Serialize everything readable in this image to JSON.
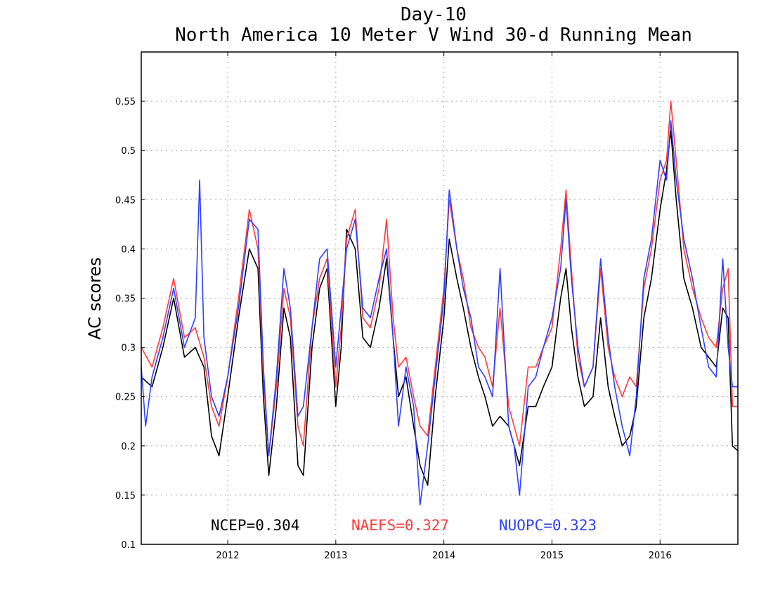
{
  "chart_data": {
    "type": "line",
    "title": "Day-10",
    "subtitle": "North America 10 Meter V Wind 30-d Running Mean",
    "xlabel": "",
    "ylabel": "AC scores",
    "xlim": [
      2011.2,
      2016.72
    ],
    "ylim": [
      0.1,
      0.6
    ],
    "x_ticks": [
      {
        "value": 2012.0,
        "label": "2012"
      },
      {
        "value": 2013.0,
        "label": "2013"
      },
      {
        "value": 2014.0,
        "label": "2014"
      },
      {
        "value": 2015.0,
        "label": "2015"
      },
      {
        "value": 2016.0,
        "label": "2016"
      }
    ],
    "y_ticks": [
      {
        "value": 0.1,
        "label": "0.1"
      },
      {
        "value": 0.15,
        "label": "0.15"
      },
      {
        "value": 0.2,
        "label": "0.2"
      },
      {
        "value": 0.25,
        "label": "0.25"
      },
      {
        "value": 0.3,
        "label": "0.3"
      },
      {
        "value": 0.35,
        "label": "0.35"
      },
      {
        "value": 0.4,
        "label": "0.4"
      },
      {
        "value": 0.45,
        "label": "0.45"
      },
      {
        "value": 0.5,
        "label": "0.5"
      },
      {
        "value": 0.55,
        "label": "0.55"
      }
    ],
    "grid": true,
    "series": [
      {
        "name": "NCEP",
        "color": "#000000",
        "points": [
          [
            2011.2,
            0.27
          ],
          [
            2011.3,
            0.26
          ],
          [
            2011.4,
            0.3
          ],
          [
            2011.5,
            0.35
          ],
          [
            2011.6,
            0.29
          ],
          [
            2011.7,
            0.3
          ],
          [
            2011.78,
            0.28
          ],
          [
            2011.85,
            0.21
          ],
          [
            2011.92,
            0.19
          ],
          [
            2012.0,
            0.25
          ],
          [
            2012.1,
            0.33
          ],
          [
            2012.2,
            0.4
          ],
          [
            2012.28,
            0.38
          ],
          [
            2012.33,
            0.25
          ],
          [
            2012.38,
            0.17
          ],
          [
            2012.45,
            0.24
          ],
          [
            2012.52,
            0.34
          ],
          [
            2012.58,
            0.31
          ],
          [
            2012.65,
            0.18
          ],
          [
            2012.7,
            0.17
          ],
          [
            2012.78,
            0.3
          ],
          [
            2012.85,
            0.36
          ],
          [
            2012.92,
            0.38
          ],
          [
            2013.0,
            0.24
          ],
          [
            2013.05,
            0.3
          ],
          [
            2013.1,
            0.42
          ],
          [
            2013.18,
            0.4
          ],
          [
            2013.25,
            0.31
          ],
          [
            2013.32,
            0.3
          ],
          [
            2013.4,
            0.34
          ],
          [
            2013.47,
            0.39
          ],
          [
            2013.53,
            0.31
          ],
          [
            2013.58,
            0.25
          ],
          [
            2013.65,
            0.27
          ],
          [
            2013.72,
            0.22
          ],
          [
            2013.78,
            0.18
          ],
          [
            2013.85,
            0.16
          ],
          [
            2013.92,
            0.25
          ],
          [
            2014.0,
            0.33
          ],
          [
            2014.05,
            0.41
          ],
          [
            2014.12,
            0.37
          ],
          [
            2014.18,
            0.34
          ],
          [
            2014.25,
            0.3
          ],
          [
            2014.32,
            0.27
          ],
          [
            2014.38,
            0.25
          ],
          [
            2014.45,
            0.22
          ],
          [
            2014.52,
            0.23
          ],
          [
            2014.6,
            0.22
          ],
          [
            2014.65,
            0.2
          ],
          [
            2014.7,
            0.18
          ],
          [
            2014.78,
            0.24
          ],
          [
            2014.85,
            0.24
          ],
          [
            2014.92,
            0.26
          ],
          [
            2015.0,
            0.28
          ],
          [
            2015.08,
            0.35
          ],
          [
            2015.13,
            0.38
          ],
          [
            2015.18,
            0.32
          ],
          [
            2015.24,
            0.27
          ],
          [
            2015.3,
            0.24
          ],
          [
            2015.38,
            0.25
          ],
          [
            2015.45,
            0.33
          ],
          [
            2015.52,
            0.26
          ],
          [
            2015.58,
            0.23
          ],
          [
            2015.65,
            0.2
          ],
          [
            2015.72,
            0.21
          ],
          [
            2015.78,
            0.24
          ],
          [
            2015.85,
            0.33
          ],
          [
            2015.92,
            0.37
          ],
          [
            2016.0,
            0.44
          ],
          [
            2016.06,
            0.48
          ],
          [
            2016.1,
            0.52
          ],
          [
            2016.15,
            0.45
          ],
          [
            2016.22,
            0.37
          ],
          [
            2016.3,
            0.34
          ],
          [
            2016.38,
            0.3
          ],
          [
            2016.45,
            0.29
          ],
          [
            2016.52,
            0.28
          ],
          [
            2016.58,
            0.34
          ],
          [
            2016.63,
            0.33
          ],
          [
            2016.67,
            0.2
          ],
          [
            2016.72,
            0.195
          ]
        ]
      },
      {
        "name": "NAEFS",
        "color": "#ff3b3b",
        "points": [
          [
            2011.2,
            0.3
          ],
          [
            2011.3,
            0.28
          ],
          [
            2011.4,
            0.32
          ],
          [
            2011.5,
            0.37
          ],
          [
            2011.6,
            0.31
          ],
          [
            2011.7,
            0.32
          ],
          [
            2011.78,
            0.29
          ],
          [
            2011.85,
            0.24
          ],
          [
            2011.92,
            0.22
          ],
          [
            2012.0,
            0.27
          ],
          [
            2012.1,
            0.35
          ],
          [
            2012.2,
            0.44
          ],
          [
            2012.28,
            0.4
          ],
          [
            2012.33,
            0.27
          ],
          [
            2012.38,
            0.19
          ],
          [
            2012.45,
            0.26
          ],
          [
            2012.52,
            0.36
          ],
          [
            2012.58,
            0.33
          ],
          [
            2012.65,
            0.22
          ],
          [
            2012.7,
            0.2
          ],
          [
            2012.78,
            0.32
          ],
          [
            2012.85,
            0.37
          ],
          [
            2012.92,
            0.39
          ],
          [
            2013.0,
            0.26
          ],
          [
            2013.05,
            0.32
          ],
          [
            2013.1,
            0.41
          ],
          [
            2013.18,
            0.44
          ],
          [
            2013.25,
            0.33
          ],
          [
            2013.32,
            0.32
          ],
          [
            2013.4,
            0.36
          ],
          [
            2013.47,
            0.43
          ],
          [
            2013.53,
            0.33
          ],
          [
            2013.58,
            0.28
          ],
          [
            2013.65,
            0.29
          ],
          [
            2013.72,
            0.25
          ],
          [
            2013.78,
            0.22
          ],
          [
            2013.85,
            0.21
          ],
          [
            2013.92,
            0.28
          ],
          [
            2014.0,
            0.36
          ],
          [
            2014.05,
            0.45
          ],
          [
            2014.12,
            0.4
          ],
          [
            2014.18,
            0.37
          ],
          [
            2014.25,
            0.32
          ],
          [
            2014.32,
            0.3
          ],
          [
            2014.38,
            0.29
          ],
          [
            2014.45,
            0.26
          ],
          [
            2014.52,
            0.34
          ],
          [
            2014.6,
            0.24
          ],
          [
            2014.65,
            0.22
          ],
          [
            2014.7,
            0.2
          ],
          [
            2014.78,
            0.28
          ],
          [
            2014.85,
            0.28
          ],
          [
            2014.92,
            0.3
          ],
          [
            2015.0,
            0.32
          ],
          [
            2015.08,
            0.4
          ],
          [
            2015.13,
            0.46
          ],
          [
            2015.18,
            0.38
          ],
          [
            2015.24,
            0.29
          ],
          [
            2015.3,
            0.26
          ],
          [
            2015.38,
            0.28
          ],
          [
            2015.45,
            0.38
          ],
          [
            2015.52,
            0.3
          ],
          [
            2015.58,
            0.27
          ],
          [
            2015.65,
            0.25
          ],
          [
            2015.72,
            0.27
          ],
          [
            2015.78,
            0.26
          ],
          [
            2015.85,
            0.36
          ],
          [
            2015.92,
            0.4
          ],
          [
            2016.0,
            0.47
          ],
          [
            2016.06,
            0.49
          ],
          [
            2016.1,
            0.55
          ],
          [
            2016.15,
            0.49
          ],
          [
            2016.22,
            0.4
          ],
          [
            2016.3,
            0.36
          ],
          [
            2016.38,
            0.33
          ],
          [
            2016.45,
            0.31
          ],
          [
            2016.52,
            0.3
          ],
          [
            2016.58,
            0.36
          ],
          [
            2016.63,
            0.38
          ],
          [
            2016.67,
            0.24
          ],
          [
            2016.72,
            0.24
          ]
        ]
      },
      {
        "name": "NUOPC",
        "color": "#2f3fff",
        "points": [
          [
            2011.2,
            0.28
          ],
          [
            2011.24,
            0.22
          ],
          [
            2011.3,
            0.27
          ],
          [
            2011.4,
            0.31
          ],
          [
            2011.5,
            0.36
          ],
          [
            2011.6,
            0.3
          ],
          [
            2011.7,
            0.33
          ],
          [
            2011.74,
            0.47
          ],
          [
            2011.78,
            0.31
          ],
          [
            2011.85,
            0.25
          ],
          [
            2011.92,
            0.23
          ],
          [
            2012.0,
            0.27
          ],
          [
            2012.1,
            0.34
          ],
          [
            2012.2,
            0.43
          ],
          [
            2012.28,
            0.42
          ],
          [
            2012.33,
            0.28
          ],
          [
            2012.38,
            0.19
          ],
          [
            2012.45,
            0.27
          ],
          [
            2012.52,
            0.38
          ],
          [
            2012.58,
            0.34
          ],
          [
            2012.65,
            0.23
          ],
          [
            2012.7,
            0.24
          ],
          [
            2012.78,
            0.32
          ],
          [
            2012.85,
            0.39
          ],
          [
            2012.92,
            0.4
          ],
          [
            2013.0,
            0.28
          ],
          [
            2013.05,
            0.34
          ],
          [
            2013.1,
            0.4
          ],
          [
            2013.18,
            0.43
          ],
          [
            2013.25,
            0.34
          ],
          [
            2013.32,
            0.33
          ],
          [
            2013.4,
            0.37
          ],
          [
            2013.47,
            0.4
          ],
          [
            2013.53,
            0.31
          ],
          [
            2013.58,
            0.22
          ],
          [
            2013.65,
            0.28
          ],
          [
            2013.72,
            0.24
          ],
          [
            2013.78,
            0.14
          ],
          [
            2013.85,
            0.2
          ],
          [
            2013.92,
            0.27
          ],
          [
            2014.0,
            0.35
          ],
          [
            2014.05,
            0.46
          ],
          [
            2014.12,
            0.4
          ],
          [
            2014.18,
            0.36
          ],
          [
            2014.25,
            0.33
          ],
          [
            2014.32,
            0.28
          ],
          [
            2014.38,
            0.27
          ],
          [
            2014.45,
            0.25
          ],
          [
            2014.52,
            0.38
          ],
          [
            2014.6,
            0.22
          ],
          [
            2014.65,
            0.2
          ],
          [
            2014.7,
            0.15
          ],
          [
            2014.78,
            0.26
          ],
          [
            2014.85,
            0.27
          ],
          [
            2014.92,
            0.3
          ],
          [
            2015.0,
            0.33
          ],
          [
            2015.08,
            0.38
          ],
          [
            2015.13,
            0.45
          ],
          [
            2015.18,
            0.37
          ],
          [
            2015.24,
            0.3
          ],
          [
            2015.3,
            0.26
          ],
          [
            2015.38,
            0.28
          ],
          [
            2015.45,
            0.39
          ],
          [
            2015.52,
            0.31
          ],
          [
            2015.58,
            0.26
          ],
          [
            2015.65,
            0.22
          ],
          [
            2015.72,
            0.19
          ],
          [
            2015.78,
            0.25
          ],
          [
            2015.85,
            0.37
          ],
          [
            2015.92,
            0.41
          ],
          [
            2016.0,
            0.49
          ],
          [
            2016.06,
            0.47
          ],
          [
            2016.1,
            0.53
          ],
          [
            2016.15,
            0.47
          ],
          [
            2016.22,
            0.41
          ],
          [
            2016.3,
            0.37
          ],
          [
            2016.38,
            0.32
          ],
          [
            2016.45,
            0.28
          ],
          [
            2016.52,
            0.27
          ],
          [
            2016.58,
            0.39
          ],
          [
            2016.63,
            0.3
          ],
          [
            2016.67,
            0.26
          ],
          [
            2016.72,
            0.26
          ]
        ]
      }
    ],
    "annotations": [
      {
        "text": "NCEP=0.304",
        "color": "#000000"
      },
      {
        "text": "NAEFS=0.327",
        "color": "#ff3b3b"
      },
      {
        "text": "NUOPC=0.323",
        "color": "#2f3fff"
      }
    ]
  }
}
